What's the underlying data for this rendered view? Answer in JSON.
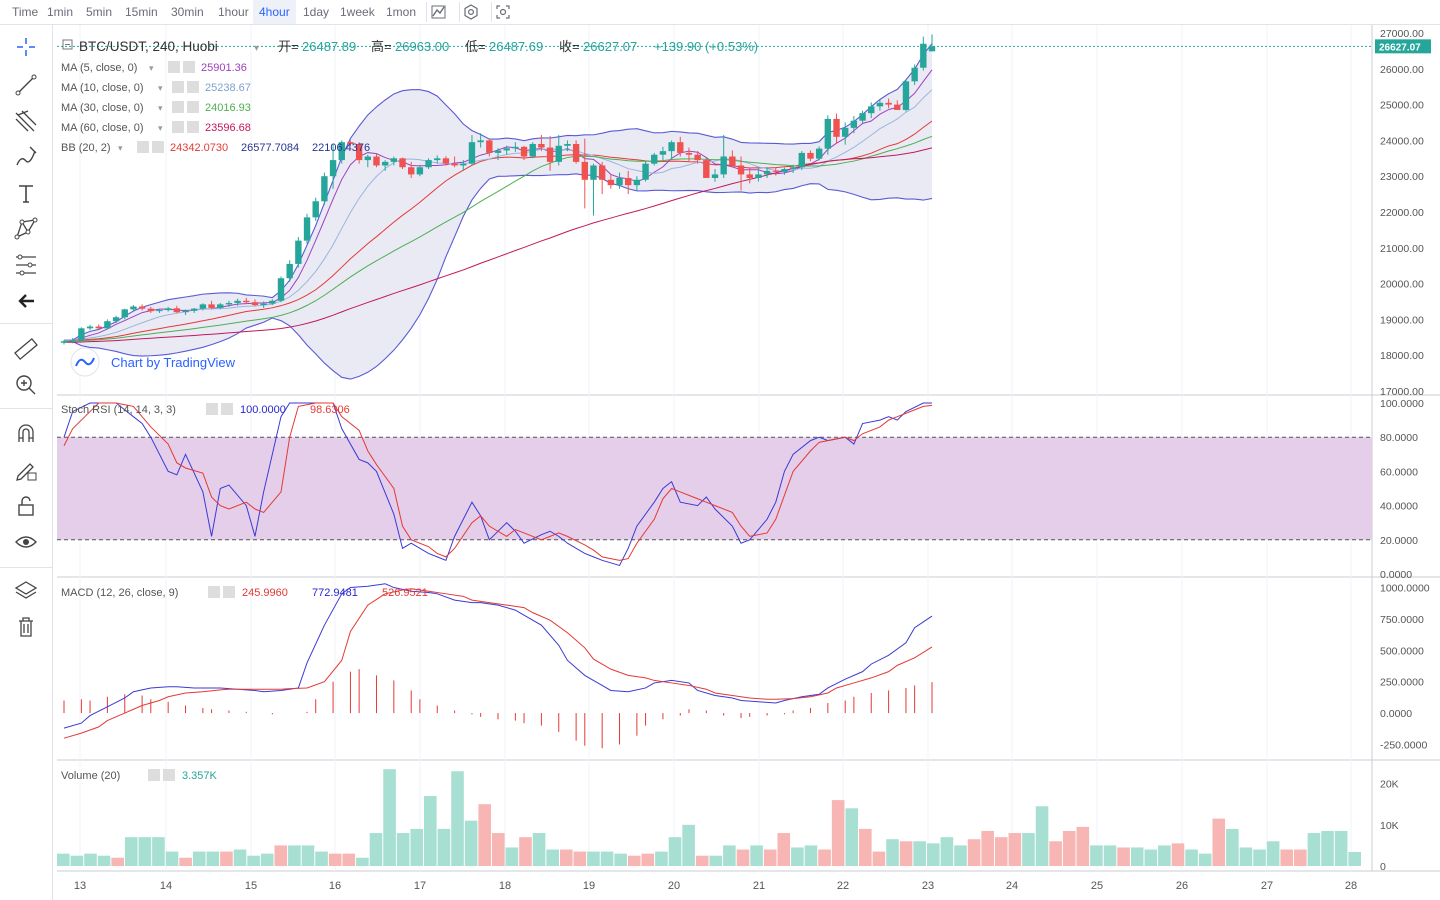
{
  "toolbar": {
    "timeframes": [
      "Time",
      "1min",
      "5min",
      "15min",
      "30min",
      "1hour",
      "4hour",
      "1day",
      "1week",
      "1mon"
    ],
    "active": "4hour"
  },
  "header": {
    "symbol": "BTC/USDT, 240, Huobi",
    "open_label": "开=",
    "open": "26487.89",
    "high_label": "高=",
    "high": "26963.00",
    "low_label": "低=",
    "low": "26487.69",
    "close_label": "收=",
    "close": "26627.07",
    "change": "+139.90 (+0.53%)",
    "last_price": "26627.07"
  },
  "indicators": [
    {
      "name": "MA (5, close, 0)",
      "values": [
        "25901.36"
      ],
      "colors": [
        "#a040c0"
      ]
    },
    {
      "name": "MA (10, close, 0)",
      "values": [
        "25238.67"
      ],
      "colors": [
        "#7e9fd0"
      ]
    },
    {
      "name": "MA (30, close, 0)",
      "values": [
        "24016.93"
      ],
      "colors": [
        "#4caf50"
      ]
    },
    {
      "name": "MA (60, close, 0)",
      "values": [
        "23596.68"
      ],
      "colors": [
        "#c2185b"
      ]
    },
    {
      "name": "BB (20, 2)",
      "values": [
        "24342.0730",
        "26577.7084",
        "22106.4376"
      ],
      "colors": [
        "#e53935",
        "#283593",
        "#283593"
      ]
    }
  ],
  "watermark": "Chart by TradingView",
  "panes": {
    "stoch": {
      "title": "Stoch RSI (14, 14, 3, 3)",
      "k": "100.0000",
      "d": "98.6306",
      "ticks": [
        "100.0000",
        "80.0000",
        "60.0000",
        "40.0000",
        "20.0000",
        "0.0000"
      ]
    },
    "macd": {
      "title": "MACD (12, 26, close, 9)",
      "hist": "245.9960",
      "macd": "772.9481",
      "signal": "526.9521",
      "ticks": [
        "1000.0000",
        "750.0000",
        "500.0000",
        "250.0000",
        "0.0000",
        "-250.0000"
      ]
    },
    "volume": {
      "title": "Volume (20)",
      "value": "3.357K",
      "ticks": [
        "20K",
        "10K",
        "0"
      ]
    }
  },
  "colors": {
    "up": "#26a69a",
    "down": "#ef5350",
    "accent": "#2962ff",
    "bb_fill": "#e8e8f4",
    "stoch_band": "#e3cbe9"
  },
  "chart_data": {
    "type": "candlestick",
    "title": "BTC/USDT, 240, Huobi",
    "ylim": [
      17000,
      27000
    ],
    "price_ticks": [
      "27000.00",
      "26000.00",
      "25000.00",
      "24000.00",
      "23000.00",
      "22000.00",
      "21000.00",
      "20000.00",
      "19000.00",
      "18000.00",
      "17000.00"
    ],
    "x_ticks": [
      "13",
      "14",
      "15",
      "16",
      "17",
      "18",
      "19",
      "20",
      "21",
      "22",
      "23",
      "24",
      "25",
      "26",
      "27",
      "28"
    ],
    "candles": [
      [
        18350,
        18420,
        18300,
        18390
      ],
      [
        18390,
        18480,
        18330,
        18420
      ],
      [
        18420,
        18780,
        18400,
        18750
      ],
      [
        18750,
        18850,
        18700,
        18800
      ],
      [
        18800,
        18860,
        18720,
        18750
      ],
      [
        18750,
        19000,
        18720,
        18950
      ],
      [
        18950,
        19100,
        18900,
        19060
      ],
      [
        19060,
        19300,
        19000,
        19280
      ],
      [
        19280,
        19400,
        19230,
        19360
      ],
      [
        19360,
        19420,
        19250,
        19300
      ],
      [
        19300,
        19350,
        19180,
        19230
      ],
      [
        19230,
        19300,
        19180,
        19260
      ],
      [
        19260,
        19350,
        19220,
        19310
      ],
      [
        19310,
        19380,
        19180,
        19200
      ],
      [
        19200,
        19280,
        19120,
        19240
      ],
      [
        19240,
        19320,
        19180,
        19300
      ],
      [
        19300,
        19450,
        19250,
        19420
      ],
      [
        19420,
        19520,
        19280,
        19320
      ],
      [
        19320,
        19460,
        19280,
        19420
      ],
      [
        19420,
        19520,
        19350,
        19460
      ],
      [
        19460,
        19580,
        19380,
        19520
      ],
      [
        19520,
        19600,
        19430,
        19480
      ],
      [
        19480,
        19560,
        19360,
        19400
      ],
      [
        19400,
        19500,
        19320,
        19440
      ],
      [
        19440,
        19560,
        19400,
        19520
      ],
      [
        19520,
        20200,
        19480,
        20150
      ],
      [
        20150,
        20650,
        20050,
        20550
      ],
      [
        20550,
        21300,
        20450,
        21200
      ],
      [
        21200,
        21950,
        21100,
        21850
      ],
      [
        21850,
        22400,
        21750,
        22300
      ],
      [
        22300,
        23100,
        22200,
        23000
      ],
      [
        23000,
        23900,
        22650,
        23450
      ],
      [
        23450,
        24000,
        23350,
        23950
      ],
      [
        23950,
        24000,
        23850,
        23900
      ],
      [
        23900,
        23950,
        23350,
        23450
      ],
      [
        23450,
        23600,
        23250,
        23550
      ],
      [
        23550,
        23620,
        23250,
        23300
      ],
      [
        23300,
        23450,
        23150,
        23400
      ],
      [
        23400,
        23550,
        23300,
        23500
      ],
      [
        23500,
        23520,
        23200,
        23250
      ],
      [
        23250,
        23400,
        22950,
        23050
      ],
      [
        23050,
        23320,
        23000,
        23250
      ],
      [
        23250,
        23500,
        23200,
        23450
      ],
      [
        23450,
        23580,
        23350,
        23500
      ],
      [
        23500,
        23560,
        23300,
        23350
      ],
      [
        23350,
        23550,
        23250,
        23300
      ],
      [
        23300,
        23450,
        23150,
        23350
      ],
      [
        23350,
        24150,
        23300,
        23950
      ],
      [
        23950,
        24200,
        23800,
        24000
      ],
      [
        24000,
        24050,
        23550,
        23650
      ],
      [
        23650,
        23780,
        23450,
        23720
      ],
      [
        23720,
        23850,
        23600,
        23780
      ],
      [
        23780,
        23950,
        23680,
        23820
      ],
      [
        23820,
        23850,
        23450,
        23550
      ],
      [
        23550,
        23950,
        23500,
        23900
      ],
      [
        23900,
        24150,
        23700,
        23800
      ],
      [
        23800,
        24120,
        23150,
        23400
      ],
      [
        23400,
        24150,
        23300,
        23850
      ],
      [
        23850,
        24000,
        23700,
        23900
      ],
      [
        23900,
        24000,
        23350,
        23400
      ],
      [
        23400,
        24050,
        22100,
        22900
      ],
      [
        22900,
        23350,
        21900,
        23300
      ],
      [
        23300,
        23400,
        22500,
        22900
      ],
      [
        22900,
        23050,
        22650,
        22750
      ],
      [
        22750,
        23100,
        22650,
        22950
      ],
      [
        22950,
        23150,
        22500,
        22750
      ],
      [
        22750,
        23000,
        22600,
        22900
      ],
      [
        22900,
        23420,
        22850,
        23350
      ],
      [
        23350,
        23650,
        23300,
        23600
      ],
      [
        23600,
        23820,
        23450,
        23700
      ],
      [
        23700,
        24000,
        23500,
        23950
      ],
      [
        23950,
        24100,
        23550,
        23650
      ],
      [
        23650,
        23800,
        23400,
        23600
      ],
      [
        23600,
        23700,
        23350,
        23450
      ],
      [
        23450,
        23500,
        22950,
        22950
      ],
      [
        22950,
        23200,
        22850,
        23050
      ],
      [
        23050,
        24150,
        22950,
        23550
      ],
      [
        23550,
        23720,
        23250,
        23300
      ],
      [
        23300,
        23550,
        22600,
        23050
      ],
      [
        23050,
        23250,
        22800,
        22950
      ],
      [
        22950,
        23250,
        22850,
        23050
      ],
      [
        23050,
        23250,
        22950,
        23150
      ],
      [
        23150,
        23250,
        23020,
        23120
      ],
      [
        23120,
        23240,
        23040,
        23200
      ],
      [
        23200,
        23320,
        23090,
        23250
      ],
      [
        23250,
        23700,
        23170,
        23650
      ],
      [
        23650,
        23720,
        23420,
        23490
      ],
      [
        23490,
        23830,
        23440,
        23770
      ],
      [
        23770,
        24700,
        23600,
        24600
      ],
      [
        24600,
        24750,
        23900,
        24100
      ],
      [
        24100,
        24500,
        23880,
        24350
      ],
      [
        24350,
        24680,
        24200,
        24550
      ],
      [
        24550,
        24830,
        24480,
        24760
      ],
      [
        24760,
        25060,
        24620,
        24950
      ],
      [
        24950,
        25130,
        24830,
        25050
      ],
      [
        25050,
        25170,
        24900,
        25000
      ],
      [
        25000,
        25120,
        24850,
        24850
      ],
      [
        24850,
        25700,
        24810,
        25650
      ],
      [
        25650,
        26120,
        25550,
        26030
      ],
      [
        26030,
        26900,
        25950,
        26700
      ],
      [
        26487.89,
        26963.0,
        26487.69,
        26627.07
      ]
    ],
    "ma": [
      {
        "name": "MA (5, close, 0)",
        "color": "#a040c0",
        "last": 25901.36
      },
      {
        "name": "MA (10, close, 0)",
        "color": "#9bb5dd",
        "last": 25238.67
      },
      {
        "name": "MA (30, close, 0)",
        "color": "#4caf50",
        "last": 24016.93
      },
      {
        "name": "MA (60, close, 0)",
        "color": "#c2185b",
        "last": 23596.68
      }
    ],
    "bb": {
      "length": 20,
      "mult": 2,
      "basis": 24342.073,
      "upper": 26577.7084,
      "lower": 22106.4376
    },
    "volume": [
      3000,
      2500,
      3000,
      2500,
      2000,
      7000,
      7000,
      7000,
      3500,
      2000,
      3500,
      3500,
      3500,
      4000,
      2500,
      3000,
      5000,
      5000,
      5000,
      3500,
      3000,
      3000,
      2000,
      8000,
      23500,
      8000,
      9000,
      17000,
      9000,
      23000,
      11000,
      15000,
      8000,
      4500,
      7000,
      8000,
      4000,
      4000,
      3500,
      3500,
      3500,
      3000,
      2500,
      3000,
      3500,
      7000,
      10000,
      2500,
      2500,
      5000,
      4000,
      5000,
      4000,
      8000,
      4500,
      5000,
      4000,
      16000,
      14000,
      9000,
      3500,
      6500,
      6000,
      6000,
      5500,
      7000,
      5000,
      6500,
      8500,
      7000,
      8000,
      8000,
      14500,
      6000,
      8500,
      9500,
      5000,
      5000,
      4500,
      4500,
      4000,
      5000,
      5500,
      4000,
      3000,
      11500,
      9000,
      4500,
      4000,
      6000,
      4000,
      4000,
      8000,
      8500,
      8500,
      3400
    ],
    "stoch_k": [
      80,
      95,
      100,
      100,
      100,
      100,
      92,
      88,
      80,
      60,
      58,
      70,
      48,
      22,
      50,
      52,
      40,
      22,
      48,
      92,
      100,
      100,
      100,
      100,
      100,
      85,
      67,
      65,
      60,
      35,
      15,
      18,
      12,
      10,
      8,
      22,
      42,
      34,
      20,
      30,
      25,
      18,
      23,
      25,
      22,
      18,
      12,
      10,
      8,
      5,
      15,
      28,
      42,
      50,
      54,
      42,
      40,
      45,
      38,
      28,
      18,
      20,
      32,
      42,
      60,
      70,
      78,
      80,
      78,
      80,
      76,
      88,
      90,
      92,
      90,
      95,
      100,
      100
    ],
    "stoch_d": [
      75,
      85,
      95,
      100,
      100,
      100,
      98,
      92,
      86,
      76,
      65,
      62,
      59,
      45,
      40,
      38,
      42,
      38,
      36,
      48,
      80,
      98,
      100,
      100,
      100,
      92,
      84,
      72,
      64,
      50,
      28,
      20,
      16,
      12,
      10,
      15,
      30,
      34,
      28,
      22,
      26,
      24,
      20,
      22,
      24,
      22,
      17,
      14,
      10,
      8,
      9,
      18,
      32,
      44,
      50,
      48,
      44,
      42,
      40,
      36,
      28,
      22,
      24,
      32,
      46,
      60,
      72,
      77,
      78,
      80,
      78,
      82,
      86,
      90,
      92,
      94,
      98,
      98.63
    ],
    "macd_line": [
      -120,
      -80,
      -20,
      50,
      120,
      170,
      200,
      210,
      210,
      200,
      200,
      200,
      190,
      180,
      170,
      180,
      200,
      400,
      700,
      950,
      1000,
      1010,
      1030,
      1000,
      970,
      960,
      950,
      900,
      880,
      880,
      860,
      820,
      780,
      700,
      540,
      420,
      300,
      220,
      180,
      170,
      200,
      240,
      260,
      240,
      180,
      140,
      120,
      100,
      90,
      80,
      100,
      130,
      150,
      200,
      270,
      330,
      390,
      460,
      560,
      680,
      772.9481
    ],
    "macd_signal": [
      -200,
      -160,
      -110,
      -60,
      0,
      60,
      100,
      130,
      160,
      170,
      185,
      190,
      190,
      190,
      190,
      195,
      200,
      250,
      420,
      650,
      860,
      950,
      980,
      990,
      970,
      950,
      930,
      900,
      880,
      860,
      840,
      800,
      740,
      640,
      520,
      430,
      350,
      300,
      280,
      260,
      240,
      220,
      190,
      160,
      140,
      120,
      110,
      110,
      115,
      130,
      160,
      200,
      240,
      280,
      330,
      380,
      440,
      526.9521
    ],
    "macd_hist": [
      100,
      110,
      100,
      130,
      150,
      140,
      110,
      90,
      60,
      40,
      30,
      20,
      10,
      0,
      -10,
      0,
      10,
      110,
      250,
      330,
      350,
      300,
      260,
      180,
      110,
      60,
      20,
      -10,
      -30,
      -50,
      -60,
      -80,
      -100,
      -150,
      -220,
      -260,
      -280,
      -250,
      -180,
      -100,
      -50,
      -20,
      30,
      20,
      -20,
      -40,
      -30,
      -20,
      -10,
      20,
      40,
      80,
      100,
      130,
      160,
      180,
      200,
      220,
      245.996
    ]
  }
}
